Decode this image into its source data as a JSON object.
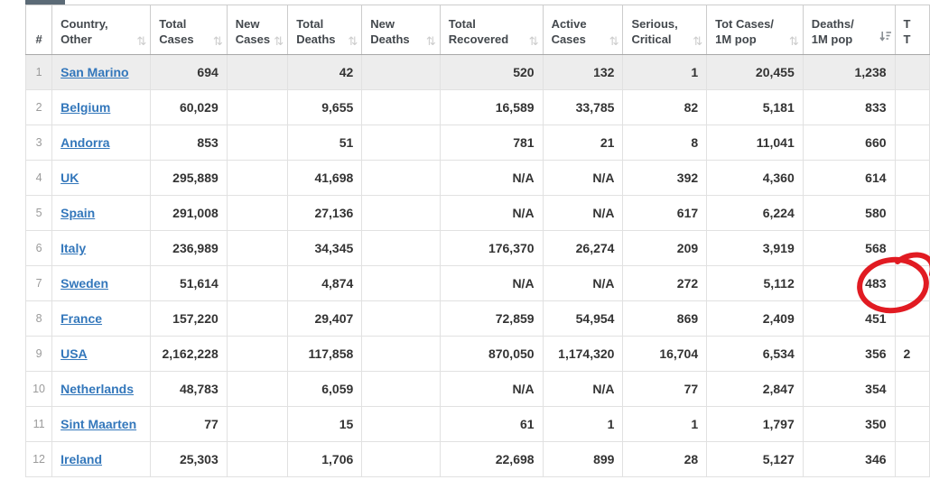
{
  "icons": {
    "sort_both_glyph": "⇅",
    "sort_desc_name": "sort-descending-icon"
  },
  "colors": {
    "link_blue": "#3377bb",
    "highlight_row_bg": "#ededed",
    "tab_stub": "#5b6a76",
    "annotation_red": "#e11b22",
    "sort_inactive": "#cccccc",
    "sort_active": "#8a8f94"
  },
  "table": {
    "columns": [
      {
        "id": "rank",
        "lines": [
          "#"
        ],
        "sortable": false,
        "sorted": ""
      },
      {
        "id": "country",
        "lines": [
          "Country,",
          "Other"
        ],
        "sortable": true,
        "sorted": ""
      },
      {
        "id": "total_cases",
        "lines": [
          "Total",
          "Cases"
        ],
        "sortable": true,
        "sorted": ""
      },
      {
        "id": "new_cases",
        "lines": [
          "New",
          "Cases"
        ],
        "sortable": true,
        "sorted": ""
      },
      {
        "id": "total_deaths",
        "lines": [
          "Total",
          "Deaths"
        ],
        "sortable": true,
        "sorted": ""
      },
      {
        "id": "new_deaths",
        "lines": [
          "New",
          "Deaths"
        ],
        "sortable": true,
        "sorted": ""
      },
      {
        "id": "total_recovered",
        "lines": [
          "Total",
          "Recovered"
        ],
        "sortable": true,
        "sorted": ""
      },
      {
        "id": "active_cases",
        "lines": [
          "Active",
          "Cases"
        ],
        "sortable": true,
        "sorted": ""
      },
      {
        "id": "serious_critical",
        "lines": [
          "Serious,",
          "Critical"
        ],
        "sortable": true,
        "sorted": ""
      },
      {
        "id": "tot_cases_1m",
        "lines": [
          "Tot Cases/",
          "1M pop"
        ],
        "sortable": true,
        "sorted": ""
      },
      {
        "id": "deaths_1m",
        "lines": [
          "Deaths/",
          "1M pop"
        ],
        "sortable": true,
        "sorted": "desc"
      },
      {
        "id": "tests_clipped",
        "lines": [
          "T",
          "T"
        ],
        "sortable": true,
        "sorted": ""
      }
    ],
    "rows": [
      {
        "rank": "1",
        "country": "San Marino",
        "total_cases": "694",
        "new_cases": "",
        "total_deaths": "42",
        "new_deaths": "",
        "total_recovered": "520",
        "active_cases": "132",
        "serious_critical": "1",
        "tot_cases_1m": "20,455",
        "deaths_1m": "1,238",
        "tests_clipped": "",
        "highlighted": true,
        "annotated": false
      },
      {
        "rank": "2",
        "country": "Belgium",
        "total_cases": "60,029",
        "new_cases": "",
        "total_deaths": "9,655",
        "new_deaths": "",
        "total_recovered": "16,589",
        "active_cases": "33,785",
        "serious_critical": "82",
        "tot_cases_1m": "5,181",
        "deaths_1m": "833",
        "tests_clipped": "",
        "highlighted": false,
        "annotated": false
      },
      {
        "rank": "3",
        "country": "Andorra",
        "total_cases": "853",
        "new_cases": "",
        "total_deaths": "51",
        "new_deaths": "",
        "total_recovered": "781",
        "active_cases": "21",
        "serious_critical": "8",
        "tot_cases_1m": "11,041",
        "deaths_1m": "660",
        "tests_clipped": "",
        "highlighted": false,
        "annotated": false
      },
      {
        "rank": "4",
        "country": "UK",
        "total_cases": "295,889",
        "new_cases": "",
        "total_deaths": "41,698",
        "new_deaths": "",
        "total_recovered": "N/A",
        "active_cases": "N/A",
        "serious_critical": "392",
        "tot_cases_1m": "4,360",
        "deaths_1m": "614",
        "tests_clipped": "",
        "highlighted": false,
        "annotated": false
      },
      {
        "rank": "5",
        "country": "Spain",
        "total_cases": "291,008",
        "new_cases": "",
        "total_deaths": "27,136",
        "new_deaths": "",
        "total_recovered": "N/A",
        "active_cases": "N/A",
        "serious_critical": "617",
        "tot_cases_1m": "6,224",
        "deaths_1m": "580",
        "tests_clipped": "",
        "highlighted": false,
        "annotated": false
      },
      {
        "rank": "6",
        "country": "Italy",
        "total_cases": "236,989",
        "new_cases": "",
        "total_deaths": "34,345",
        "new_deaths": "",
        "total_recovered": "176,370",
        "active_cases": "26,274",
        "serious_critical": "209",
        "tot_cases_1m": "3,919",
        "deaths_1m": "568",
        "tests_clipped": "",
        "highlighted": false,
        "annotated": false
      },
      {
        "rank": "7",
        "country": "Sweden",
        "total_cases": "51,614",
        "new_cases": "",
        "total_deaths": "4,874",
        "new_deaths": "",
        "total_recovered": "N/A",
        "active_cases": "N/A",
        "serious_critical": "272",
        "tot_cases_1m": "5,112",
        "deaths_1m": "483",
        "tests_clipped": "",
        "highlighted": false,
        "annotated": true
      },
      {
        "rank": "8",
        "country": "France",
        "total_cases": "157,220",
        "new_cases": "",
        "total_deaths": "29,407",
        "new_deaths": "",
        "total_recovered": "72,859",
        "active_cases": "54,954",
        "serious_critical": "869",
        "tot_cases_1m": "2,409",
        "deaths_1m": "451",
        "tests_clipped": "",
        "highlighted": false,
        "annotated": false
      },
      {
        "rank": "9",
        "country": "USA",
        "total_cases": "2,162,228",
        "new_cases": "",
        "total_deaths": "117,858",
        "new_deaths": "",
        "total_recovered": "870,050",
        "active_cases": "1,174,320",
        "serious_critical": "16,704",
        "tot_cases_1m": "6,534",
        "deaths_1m": "356",
        "tests_clipped": "2",
        "highlighted": false,
        "annotated": false
      },
      {
        "rank": "10",
        "country": "Netherlands",
        "total_cases": "48,783",
        "new_cases": "",
        "total_deaths": "6,059",
        "new_deaths": "",
        "total_recovered": "N/A",
        "active_cases": "N/A",
        "serious_critical": "77",
        "tot_cases_1m": "2,847",
        "deaths_1m": "354",
        "tests_clipped": "",
        "highlighted": false,
        "annotated": false
      },
      {
        "rank": "11",
        "country": "Sint Maarten",
        "total_cases": "77",
        "new_cases": "",
        "total_deaths": "15",
        "new_deaths": "",
        "total_recovered": "61",
        "active_cases": "1",
        "serious_critical": "1",
        "tot_cases_1m": "1,797",
        "deaths_1m": "350",
        "tests_clipped": "",
        "highlighted": false,
        "annotated": false
      },
      {
        "rank": "12",
        "country": "Ireland",
        "total_cases": "25,303",
        "new_cases": "",
        "total_deaths": "1,706",
        "new_deaths": "",
        "total_recovered": "22,698",
        "active_cases": "899",
        "serious_critical": "28",
        "tot_cases_1m": "5,127",
        "deaths_1m": "346",
        "tests_clipped": "",
        "highlighted": false,
        "annotated": false
      }
    ]
  },
  "annotation": {
    "shape": "hand-drawn-circle",
    "color": "#e11b22",
    "circled_value": "483",
    "circled_row": "Sweden",
    "circled_column": "Deaths/1M pop"
  }
}
